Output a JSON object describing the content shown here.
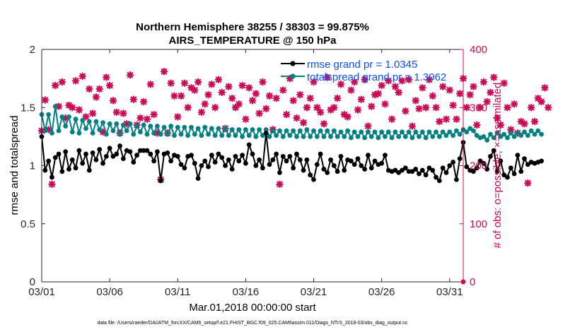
{
  "chart_data": {
    "type": "line",
    "title": "Northern Hemisphere 38255 / 38303 = 99.875%",
    "subtitle": "AIRS_TEMPERATURE @ 150 hPa",
    "xlabel": "Mar.01,2018 00:00:00 start",
    "ylabel_left": "rmse and totalspread",
    "ylabel_right": "# of obs: o=possible; ×=assimilated",
    "footnote": "data file: /Users/raeder/DAI/ATM_forcXX/CAM6_setup/f.e21.FHIST_BGC.f09_025.CAM6assim.011/Diags_NTrS_2018-03/obs_diag_output.nc",
    "xlim": [
      1,
      32
    ],
    "ylim_left": [
      0,
      2
    ],
    "ylim_right": [
      0,
      400
    ],
    "x_ticks": [
      1,
      6,
      11,
      16,
      21,
      26,
      31
    ],
    "x_tick_labels": [
      "03/01",
      "03/06",
      "03/11",
      "03/16",
      "03/21",
      "03/26",
      "03/31"
    ],
    "y_ticks_left": [
      0,
      0.5,
      1,
      1.5,
      2
    ],
    "y_tick_labels_left": [
      "0",
      "0.5",
      "1",
      "1.5",
      "2"
    ],
    "y_ticks_right": [
      0,
      100,
      200,
      300,
      400
    ],
    "y_tick_labels_right": [
      "0",
      "100",
      "200",
      "300",
      "400"
    ],
    "colors": {
      "rmse": "#000000",
      "spread": "#008080",
      "obs": "#cc0a55",
      "legend_text": "#0b4ff5"
    },
    "series": [
      {
        "name": "rmse grand pr = 1.0345",
        "axis": "left",
        "color": "#000000",
        "marker": "filled-circle",
        "x_start": 1.0,
        "x_step": 0.25,
        "values": [
          1.25,
          0.96,
          1.04,
          0.9,
          1.07,
          1.1,
          0.95,
          1.12,
          0.97,
          1.05,
          0.98,
          1.13,
          1.02,
          1.1,
          0.96,
          1.11,
          1.05,
          1.14,
          1.02,
          1.08,
          1.15,
          1.08,
          1.1,
          1.17,
          1.06,
          1.13,
          1.12,
          1.03,
          1.09,
          1.13,
          1.13,
          1.13,
          1.1,
          1.04,
          1.12,
          0.87,
          1.1,
          1.11,
          1.04,
          1.09,
          1.08,
          1.01,
          0.98,
          1.08,
          1.09,
          1.02,
          0.89,
          1.0,
          1.04,
          0.99,
          1.09,
          1.03,
          1.1,
          1.07,
          1.0,
          1.05,
          0.97,
          1.08,
          1.04,
          1.09,
          1.02,
          1.18,
          1.1,
          1.0,
          1.05,
          0.98,
          1.28,
          1.01,
          1.05,
          1.1,
          0.94,
          1.08,
          1.04,
          1.08,
          0.98,
          1.1,
          1.05,
          0.96,
          1.05,
          0.92,
          0.88,
          1.01,
          1.1,
          0.97,
          0.94,
          1.05,
          1.0,
          0.95,
          1.08,
          0.96,
          1.05,
          1.04,
          1.01,
          1.06,
          1.0,
          0.97,
          1.09,
          0.98,
          1.04,
          1.01,
          1.02,
          1.09,
          0.96,
          0.95,
          0.96,
          0.94,
          0.96,
          0.98,
          0.95,
          0.95,
          0.97,
          0.93,
          0.96,
          0.92,
          0.98,
          0.96,
          0.9,
          0.87,
          0.98,
          0.94,
          1.0,
          1.03,
          0.88,
          1.06,
          1.2,
          0.99,
          0.96,
          0.95,
          0.98,
          1.04,
          1.02,
          0.97,
          1.08,
          1.13,
          0.95,
          1.04,
          0.92,
          0.9,
          0.98,
          0.93,
          1.09,
          0.95,
          1.06,
          1.01,
          1.03,
          1.02,
          1.03,
          1.04
        ]
      },
      {
        "name": "totalspread grand pr = 1.3062",
        "axis": "left",
        "color": "#008080",
        "marker": "filled-circle",
        "x_start": 1.0,
        "x_step": 0.25,
        "values": [
          1.44,
          1.3,
          1.44,
          1.28,
          1.51,
          1.3,
          1.42,
          1.34,
          1.42,
          1.29,
          1.4,
          1.28,
          1.39,
          1.32,
          1.38,
          1.28,
          1.38,
          1.31,
          1.37,
          1.27,
          1.36,
          1.3,
          1.36,
          1.27,
          1.35,
          1.3,
          1.36,
          1.27,
          1.34,
          1.29,
          1.35,
          1.27,
          1.34,
          1.28,
          1.34,
          1.27,
          1.33,
          1.27,
          1.34,
          1.26,
          1.33,
          1.27,
          1.33,
          1.26,
          1.33,
          1.27,
          1.32,
          1.26,
          1.33,
          1.27,
          1.32,
          1.26,
          1.32,
          1.26,
          1.32,
          1.26,
          1.31,
          1.26,
          1.31,
          1.25,
          1.31,
          1.26,
          1.31,
          1.25,
          1.31,
          1.26,
          1.31,
          1.25,
          1.3,
          1.26,
          1.3,
          1.25,
          1.3,
          1.26,
          1.3,
          1.25,
          1.3,
          1.25,
          1.31,
          1.25,
          1.3,
          1.25,
          1.3,
          1.25,
          1.3,
          1.25,
          1.3,
          1.25,
          1.29,
          1.25,
          1.3,
          1.24,
          1.29,
          1.25,
          1.29,
          1.24,
          1.29,
          1.25,
          1.29,
          1.24,
          1.29,
          1.25,
          1.29,
          1.24,
          1.29,
          1.25,
          1.29,
          1.25,
          1.29,
          1.24,
          1.29,
          1.25,
          1.29,
          1.24,
          1.29,
          1.25,
          1.29,
          1.25,
          1.29,
          1.26,
          1.29,
          1.26,
          1.3,
          1.27,
          1.31,
          1.29,
          1.32,
          1.3,
          1.26,
          1.24,
          1.25,
          1.22,
          1.27,
          1.24,
          1.28,
          1.25,
          1.27,
          1.24,
          1.28,
          1.25,
          1.28,
          1.26,
          1.29,
          1.26,
          1.3,
          1.27,
          1.3,
          1.27
        ]
      }
    ],
    "obs_series": {
      "name": "# of obs (possible / assimilated)",
      "axis": "right",
      "color": "#cc0a55",
      "marker": "cross",
      "x_start": 1.0,
      "x_step": 0.25,
      "values": [
        260,
        313,
        262,
        168,
        338,
        302,
        344,
        282,
        304,
        300,
        346,
        296,
        354,
        284,
        332,
        290,
        318,
        332,
        258,
        352,
        338,
        312,
        292,
        256,
        290,
        272,
        356,
        314,
        270,
        282,
        310,
        280,
        340,
        288,
        256,
        176,
        362,
        256,
        342,
        320,
        284,
        320,
        342,
        300,
        334,
        330,
        344,
        292,
        306,
        322,
        340,
        300,
        348,
        326,
        264,
        336,
        316,
        300,
        306,
        338,
        280,
        334,
        312,
        324,
        290,
        344,
        298,
        320,
        262,
        316,
        168,
        330,
        288,
        350,
        312,
        282,
        322,
        274,
        300,
        316,
        344,
        300,
        292,
        272,
        352,
        296,
        300,
        316,
        340,
        288,
        284,
        330,
        344,
        296,
        314,
        348,
        268,
        302,
        322,
        324,
        338,
        306,
        346,
        280,
        336,
        326,
        346,
        294,
        348,
        268,
        312,
        298,
        334,
        300,
        348,
        320,
        300,
        276,
        336,
        280,
        330,
        304,
        280,
        324,
        350,
        300,
        322,
        336,
        270,
        300,
        344,
        310,
        326,
        352,
        282,
        270,
        342,
        300,
        262,
        306,
        256,
        276,
        272,
        170,
        300,
        276,
        316,
        310,
        334,
        300
      ]
    }
  }
}
